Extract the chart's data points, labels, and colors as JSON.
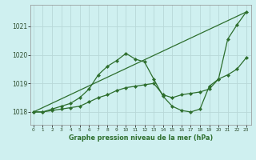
{
  "line1": {
    "x": [
      0,
      23
    ],
    "y": [
      1018.0,
      1021.5
    ],
    "has_markers": false
  },
  "line2": {
    "x": [
      0,
      1,
      2,
      3,
      4,
      5,
      6,
      7,
      8,
      9,
      10,
      11,
      12,
      13,
      14,
      15,
      16,
      17,
      18,
      19,
      20,
      21,
      22,
      23
    ],
    "y": [
      1018.0,
      1018.0,
      1018.1,
      1018.2,
      1018.3,
      1018.5,
      1018.8,
      1019.3,
      1019.6,
      1019.8,
      1020.05,
      1019.85,
      1019.75,
      1019.15,
      1018.55,
      1018.2,
      1018.05,
      1018.0,
      1018.1,
      1018.9,
      1019.15,
      1020.55,
      1021.05,
      1021.5
    ],
    "has_markers": true
  },
  "line3": {
    "x": [
      0,
      1,
      2,
      3,
      4,
      5,
      6,
      7,
      8,
      9,
      10,
      11,
      12,
      13,
      14,
      15,
      16,
      17,
      18,
      19,
      20,
      21,
      22,
      23
    ],
    "y": [
      1018.0,
      1018.0,
      1018.05,
      1018.1,
      1018.15,
      1018.2,
      1018.35,
      1018.5,
      1018.6,
      1018.75,
      1018.85,
      1018.9,
      1018.95,
      1019.0,
      1018.6,
      1018.5,
      1018.6,
      1018.65,
      1018.7,
      1018.8,
      1019.15,
      1019.3,
      1019.5,
      1019.9
    ],
    "has_markers": true
  },
  "ylabel_ticks": [
    1018,
    1019,
    1020,
    1021
  ],
  "xlabel_ticks": [
    0,
    1,
    2,
    3,
    4,
    5,
    6,
    7,
    8,
    9,
    10,
    11,
    12,
    13,
    14,
    15,
    16,
    17,
    18,
    19,
    20,
    21,
    22,
    23
  ],
  "xlabel": "Graphe pression niveau de la mer (hPa)",
  "xlim": [
    -0.3,
    23.5
  ],
  "ylim": [
    1017.55,
    1021.75
  ],
  "bg_color": "#cff0f0",
  "grid_color": "#b8d8d8",
  "line_color": "#2d6e2d",
  "fig_width": 3.2,
  "fig_height": 2.0,
  "dpi": 100
}
